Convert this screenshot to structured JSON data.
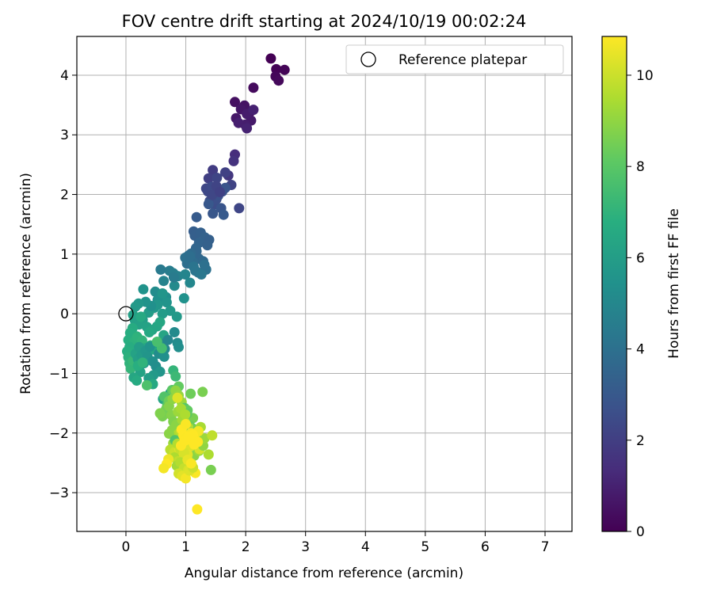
{
  "chart_data": {
    "type": "scatter",
    "title": "FOV centre drift starting at 2024/10/19 00:02:24",
    "xlabel": "Angular distance from reference (arcmin)",
    "ylabel": "Rotation from reference (arcmin)",
    "xlim": [
      -0.82,
      7.45
    ],
    "ylim": [
      -3.65,
      4.65
    ],
    "xticks": [
      0,
      1,
      2,
      3,
      4,
      5,
      6,
      7
    ],
    "yticks": [
      -3,
      -2,
      -1,
      0,
      1,
      2,
      3,
      4
    ],
    "grid": true,
    "legend": {
      "placement": "top-right",
      "entries": [
        "Reference platepar"
      ]
    },
    "reference": {
      "x": 0,
      "y": 0,
      "label": "Reference platepar"
    },
    "colorbar": {
      "label": "Hours from first FF file",
      "range": [
        0,
        10.85
      ],
      "ticks": [
        0,
        2,
        4,
        6,
        8,
        10
      ],
      "colormap": "viridis"
    },
    "points": {
      "x": [
        2.42,
        2.51,
        2.65,
        2.5,
        2.55,
        2.13,
        1.82,
        1.98,
        2.07,
        1.92,
        1.84,
        2.09,
        2.02,
        1.99,
        1.88,
        2.13,
        2.02,
        1.82,
        1.71,
        1.8,
        1.45,
        1.38,
        1.66,
        1.76,
        1.52,
        1.34,
        1.37,
        1.43,
        1.4,
        1.47,
        1.51,
        1.54,
        1.61,
        1.66,
        1.59,
        1.45,
        1.38,
        1.44,
        1.51,
        1.57,
        1.89,
        1.63,
        1.18,
        1.13,
        1.15,
        1.25,
        1.32,
        1.22,
        1.17,
        1.39,
        1.36,
        1.18,
        1.22,
        1.29,
        1.09,
        1.12,
        1.05,
        1.02,
        0.99,
        1.34,
        1.21,
        1.13,
        1.16,
        1.26,
        1.31,
        1.07,
        0.58,
        0.73,
        0.79,
        0.87,
        0.63,
        0.99,
        1.07,
        0.81,
        0.49,
        0.67,
        0.53,
        0.97,
        0.29,
        0.8,
        0.68,
        0.61,
        0.53,
        0.47,
        0.74,
        0.85,
        0.61,
        0.38,
        0.42,
        0.33,
        0.28,
        0.21,
        0.16,
        0.12,
        0.15,
        0.22,
        0.35,
        0.44,
        0.52,
        0.57,
        0.39,
        0.25,
        0.18,
        0.11,
        0.07,
        0.04,
        0.09,
        0.14,
        0.19,
        0.27,
        0.41,
        0.55,
        0.63,
        0.46,
        0.32,
        0.23,
        0.06,
        0.02,
        0.04,
        0.06,
        0.08,
        0.12,
        0.16,
        0.2,
        0.22,
        0.26,
        0.3,
        0.33,
        0.36,
        0.4,
        0.45,
        0.5,
        0.55,
        0.6,
        0.65,
        0.7,
        0.81,
        0.86,
        0.88,
        0.64,
        0.57,
        0.46,
        0.38,
        0.24,
        0.13,
        0.18,
        0.2,
        0.28,
        0.45,
        0.62,
        0.74,
        0.79,
        0.83,
        0.6,
        0.52,
        0.35,
        0.64,
        0.69,
        0.77,
        0.82,
        0.88,
        0.8,
        0.72,
        0.67,
        0.61,
        0.57,
        0.72,
        0.78,
        0.83,
        0.88,
        0.93,
        0.98,
        1.03,
        1.08,
        1.12,
        0.76,
        0.82,
        0.87,
        0.92,
        0.97,
        1.02,
        1.07,
        1.11,
        0.79,
        0.84,
        0.89,
        0.94,
        0.99,
        1.04,
        1.09,
        1.28,
        0.77,
        0.83,
        0.87,
        0.92,
        0.97,
        1.02,
        1.07,
        0.72,
        0.79,
        0.86,
        0.93,
        1.0,
        1.05,
        1.11,
        1.19,
        1.25,
        0.74,
        0.81,
        0.89,
        0.95,
        1.01,
        1.08,
        1.14,
        1.22,
        0.81,
        0.88,
        0.96,
        1.03,
        1.17,
        1.23,
        1.29,
        0.85,
        0.91,
        0.97,
        1.04,
        1.1,
        1.16,
        1.31,
        1.38,
        1.44,
        0.88,
        0.94,
        1.0,
        1.06,
        1.12,
        1.42,
        0.82,
        0.86,
        0.91,
        0.97,
        1.03,
        1.09,
        0.71,
        0.68,
        0.63,
        0.86,
        0.93,
        1.0,
        1.09,
        1.21,
        0.96,
        1.01,
        1.06,
        1.12,
        1.2,
        0.92,
        0.98,
        1.04,
        1.14,
        1.19
      ],
      "y": [
        4.28,
        4.1,
        4.09,
        3.98,
        3.91,
        3.79,
        3.55,
        3.49,
        3.38,
        3.43,
        3.28,
        3.24,
        3.35,
        3.17,
        3.2,
        3.42,
        3.11,
        2.67,
        2.32,
        2.56,
        2.41,
        2.27,
        2.37,
        2.16,
        2.28,
        2.1,
        2.05,
        2.13,
        1.89,
        1.83,
        1.92,
        1.98,
        2.05,
        2.11,
        1.77,
        1.68,
        1.84,
        1.99,
        2.14,
        2.04,
        1.77,
        1.66,
        1.62,
        1.38,
        1.31,
        1.36,
        1.28,
        1.19,
        1.1,
        1.24,
        1.15,
        1.05,
        0.92,
        0.88,
        1.01,
        0.87,
        0.98,
        0.84,
        0.94,
        0.74,
        0.69,
        0.79,
        0.72,
        0.66,
        0.82,
        0.96,
        0.74,
        0.72,
        0.68,
        0.63,
        0.55,
        0.66,
        0.52,
        0.47,
        0.37,
        0.28,
        0.23,
        0.26,
        0.41,
        0.61,
        0.19,
        0.34,
        0.15,
        0.1,
        0.05,
        -0.05,
        0.0,
        0.02,
        0.13,
        0.2,
        -0.1,
        0.17,
        0.12,
        -0.02,
        -0.11,
        -0.18,
        -0.22,
        -0.27,
        -0.21,
        -0.14,
        -0.31,
        -0.05,
        -0.38,
        -0.24,
        -0.32,
        -0.44,
        -0.52,
        -0.46,
        -0.39,
        -0.45,
        -0.53,
        -0.49,
        -0.36,
        -0.6,
        -0.58,
        -0.66,
        -0.56,
        -0.63,
        -0.73,
        -0.83,
        -0.92,
        -0.79,
        -0.67,
        -0.76,
        -0.56,
        -0.69,
        -0.83,
        -0.62,
        -0.72,
        -0.55,
        -0.8,
        -0.88,
        -0.67,
        -0.51,
        -0.59,
        -0.44,
        -0.31,
        -0.49,
        -0.56,
        -0.72,
        -0.97,
        -1.03,
        -1.08,
        -0.98,
        -1.07,
        -1.12,
        -0.87,
        -0.82,
        -1.18,
        -1.43,
        -1.33,
        -0.95,
        -1.05,
        -0.58,
        -0.47,
        -1.2,
        -1.39,
        -1.53,
        -1.28,
        -1.35,
        -1.22,
        -1.3,
        -1.46,
        -1.6,
        -1.72,
        -1.67,
        -1.55,
        -1.43,
        -1.29,
        -1.37,
        -1.48,
        -1.58,
        -1.62,
        -1.34,
        -1.75,
        -1.7,
        -1.83,
        -1.64,
        -1.59,
        -1.76,
        -1.68,
        -1.88,
        -1.92,
        -1.81,
        -1.86,
        -1.97,
        -1.78,
        -1.69,
        -1.91,
        -1.99,
        -1.31,
        -1.95,
        -2.05,
        -2.02,
        -1.97,
        -2.12,
        -2.09,
        -2.14,
        -2.01,
        -2.17,
        -2.2,
        -2.06,
        -2.25,
        -2.15,
        -2.21,
        -2.03,
        -1.9,
        -2.28,
        -2.32,
        -2.26,
        -2.35,
        -2.31,
        -2.22,
        -2.38,
        -2.3,
        -2.41,
        -2.47,
        -2.44,
        -2.36,
        -2.08,
        -2.27,
        -2.21,
        -2.55,
        -2.49,
        -2.59,
        -2.62,
        -2.53,
        -2.67,
        -2.09,
        -2.36,
        -2.04,
        -2.68,
        -2.72,
        -2.76,
        -2.63,
        -2.58,
        -2.62,
        -2.12,
        -2.18,
        -2.27,
        -2.33,
        -2.45,
        -2.51,
        -2.44,
        -2.52,
        -2.59,
        -1.41,
        -1.94,
        -1.85,
        -2.0,
        -1.97,
        -2.04,
        -2.08,
        -2.11,
        -2.03,
        -2.15,
        -2.21,
        -2.13,
        -2.06,
        -2.19,
        -3.28
      ],
      "hours": [
        0.0,
        0.06,
        0.12,
        0.18,
        0.24,
        0.32,
        0.46,
        0.52,
        0.58,
        0.64,
        0.7,
        0.76,
        0.82,
        0.88,
        0.94,
        1.0,
        1.06,
        1.4,
        1.72,
        1.58,
        1.92,
        2.0,
        2.08,
        2.16,
        2.24,
        2.3,
        2.36,
        2.42,
        2.48,
        2.54,
        2.6,
        2.66,
        2.72,
        2.78,
        2.86,
        2.92,
        2.98,
        2.3,
        2.2,
        2.1,
        2.26,
        3.04,
        3.1,
        3.2,
        3.26,
        3.32,
        3.38,
        3.44,
        3.5,
        3.3,
        3.36,
        3.56,
        3.62,
        3.68,
        3.74,
        3.8,
        3.86,
        3.92,
        3.98,
        4.04,
        4.1,
        4.16,
        4.22,
        4.28,
        4.0,
        3.9,
        4.4,
        4.5,
        4.6,
        4.7,
        4.8,
        4.9,
        5.0,
        5.1,
        5.2,
        5.3,
        5.4,
        5.46,
        5.52,
        4.46,
        5.58,
        5.6,
        5.64,
        5.7,
        5.76,
        5.82,
        5.88,
        5.94,
        5.4,
        5.5,
        6.0,
        5.7,
        5.8,
        6.06,
        6.12,
        6.18,
        6.24,
        6.3,
        6.36,
        6.42,
        6.48,
        6.54,
        6.6,
        6.66,
        6.72,
        6.78,
        6.84,
        6.9,
        6.96,
        7.02,
        7.08,
        7.14,
        6.3,
        6.4,
        6.5,
        6.6,
        6.7,
        6.8,
        6.9,
        7.0,
        7.1,
        7.2,
        6.2,
        6.1,
        6.0,
        5.9,
        5.8,
        5.7,
        5.6,
        5.5,
        5.4,
        5.3,
        5.2,
        5.1,
        5.0,
        4.9,
        5.1,
        5.2,
        5.3,
        5.4,
        5.6,
        5.8,
        6.0,
        6.2,
        6.4,
        6.6,
        6.8,
        7.0,
        6.5,
        6.3,
        6.1,
        7.1,
        7.3,
        7.5,
        7.6,
        7.7,
        7.8,
        7.9,
        8.0,
        8.1,
        8.2,
        8.3,
        8.4,
        8.5,
        8.6,
        8.7,
        8.8,
        8.9,
        9.0,
        9.1,
        9.2,
        8.0,
        8.2,
        8.4,
        8.6,
        8.8,
        9.0,
        9.2,
        9.4,
        9.6,
        8.1,
        8.3,
        8.5,
        8.7,
        8.9,
        9.1,
        9.3,
        9.5,
        9.7,
        8.3,
        8.6,
        8.9,
        9.2,
        9.5,
        9.8,
        10.1,
        9.1,
        8.6,
        8.9,
        9.2,
        9.5,
        9.8,
        10.1,
        10.4,
        8.8,
        9.1,
        9.4,
        9.7,
        10.0,
        10.3,
        10.6,
        10.5,
        10.3,
        8.9,
        9.2,
        9.5,
        9.8,
        10.1,
        10.4,
        10.7,
        10.2,
        9.0,
        9.3,
        9.6,
        9.9,
        10.2,
        10.5,
        10.8,
        9.2,
        9.5,
        9.8,
        10.1,
        10.4,
        10.7,
        10.3,
        10.0,
        8.6,
        7.8,
        9.6,
        9.9,
        10.2,
        10.5,
        10.8,
        10.6,
        10.9,
        10.7,
        10.3,
        10.9,
        10.8,
        10.75,
        10.7,
        10.85,
        10.8,
        10.85
      ]
    }
  }
}
